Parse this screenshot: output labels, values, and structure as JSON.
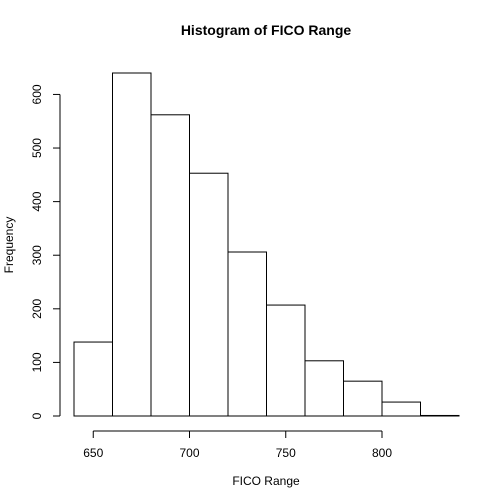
{
  "chart_data": {
    "type": "bar",
    "title": "Histogram of FICO Range",
    "xlabel": "FICO Range",
    "ylabel": "Frequency",
    "bins": [
      {
        "x0": 640,
        "x1": 660,
        "count": 138
      },
      {
        "x0": 660,
        "x1": 680,
        "count": 640
      },
      {
        "x0": 680,
        "x1": 700,
        "count": 562
      },
      {
        "x0": 700,
        "x1": 720,
        "count": 453
      },
      {
        "x0": 720,
        "x1": 740,
        "count": 306
      },
      {
        "x0": 740,
        "x1": 760,
        "count": 207
      },
      {
        "x0": 760,
        "x1": 780,
        "count": 103
      },
      {
        "x0": 780,
        "x1": 800,
        "count": 65
      },
      {
        "x0": 800,
        "x1": 820,
        "count": 26
      },
      {
        "x0": 820,
        "x1": 840,
        "count": 1
      }
    ],
    "xlim": [
      640,
      840
    ],
    "ylim": [
      0,
      640
    ],
    "xticks": [
      650,
      700,
      750,
      800
    ],
    "yticks": [
      0,
      100,
      200,
      300,
      400,
      500,
      600
    ],
    "grid": false,
    "colors": {
      "bar_fill": "#ffffff",
      "bar_stroke": "#000000"
    }
  }
}
